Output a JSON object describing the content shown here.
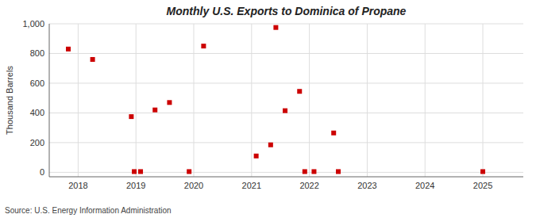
{
  "chart_data": {
    "type": "scatter",
    "title": "Monthly U.S. Exports to Dominica of Propane",
    "y_label": "Thousand Barrels",
    "annotations": [
      "Source: U.S. Energy Information Administration"
    ],
    "color": "#cc0000",
    "marker": "square",
    "grid": true,
    "xlim": [
      2017.5,
      2025.7
    ],
    "ylim": [
      -30,
      1000
    ],
    "xticks": [
      2018,
      2019,
      2020,
      2021,
      2022,
      2023,
      2024,
      2025
    ],
    "yticks": [
      0,
      200,
      400,
      600,
      800,
      {
        "value": 1000,
        "label": "1,000"
      }
    ],
    "x": [
      2017.83,
      2018.25,
      2018.92,
      2018.97,
      2019.08,
      2019.33,
      2019.58,
      2019.92,
      2020.17,
      2021.08,
      2021.33,
      2021.42,
      2021.58,
      2021.83,
      2021.92,
      2022.08,
      2022.42,
      2022.5,
      2025.0
    ],
    "values": [
      830,
      760,
      375,
      5,
      5,
      420,
      470,
      5,
      850,
      110,
      185,
      975,
      415,
      545,
      5,
      5,
      265,
      5,
      5
    ]
  }
}
